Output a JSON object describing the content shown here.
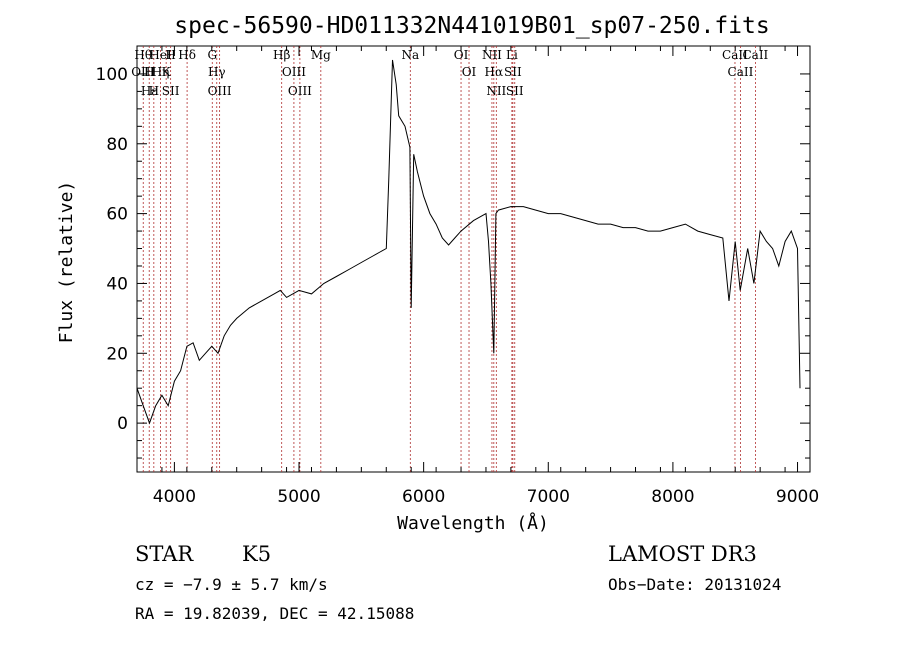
{
  "chart_data": {
    "type": "line",
    "title": "spec-56590-HD011332N441019B01_sp07-250.fits",
    "xlabel": "Wavelength (Å)",
    "ylabel": "Flux (relative)",
    "xlim": [
      3700,
      9100
    ],
    "ylim": [
      -14,
      108
    ],
    "xticks": [
      4000,
      5000,
      6000,
      7000,
      8000,
      9000
    ],
    "yticks": [
      0,
      20,
      40,
      60,
      80,
      100
    ],
    "grid": false,
    "series": [
      {
        "x": [
          3700,
          3750,
          3800,
          3850,
          3900,
          3950,
          4000,
          4050,
          4100,
          4150,
          4200,
          4250,
          4300,
          4350,
          4400,
          4450,
          4500,
          4600,
          4700,
          4800,
          4850,
          4900,
          5000,
          5100,
          5200,
          5300,
          5400,
          5500,
          5600,
          5650,
          5700,
          5720,
          5750,
          5780,
          5800,
          5850,
          5890,
          5900,
          5920,
          5950,
          6000,
          6050,
          6100,
          6150,
          6200,
          6250,
          6300,
          6400,
          6500,
          6520,
          6540,
          6563,
          6580,
          6600,
          6700,
          6800,
          6900,
          7000,
          7100,
          7200,
          7300,
          7400,
          7500,
          7600,
          7700,
          7800,
          7900,
          8000,
          8100,
          8200,
          8300,
          8400,
          8450,
          8500,
          8540,
          8600,
          8650,
          8700,
          8750,
          8800,
          8850,
          8900,
          8950,
          9000,
          9020
        ],
        "y": [
          10,
          5,
          0,
          5,
          8,
          5,
          12,
          15,
          22,
          23,
          18,
          20,
          22,
          20,
          25,
          28,
          30,
          33,
          35,
          37,
          38,
          36,
          38,
          37,
          40,
          42,
          44,
          46,
          48,
          49,
          50,
          70,
          104,
          97,
          88,
          85,
          79,
          33,
          77,
          72,
          65,
          60,
          57,
          53,
          51,
          53,
          55,
          58,
          60,
          52,
          40,
          20,
          60,
          61,
          62,
          62,
          61,
          60,
          60,
          59,
          58,
          57,
          57,
          56,
          56,
          55,
          55,
          56,
          57,
          55,
          54,
          53,
          35,
          52,
          38,
          50,
          40,
          55,
          52,
          50,
          45,
          52,
          55,
          50,
          10
        ]
      }
    ],
    "line_markers": [
      {
        "wavelength": 3750,
        "labels": [
          "Hθ",
          "OIII"
        ]
      },
      {
        "wavelength": 3798,
        "labels": [
          "H",
          "Hε"
        ]
      },
      {
        "wavelength": 3835,
        "labels": [
          "H"
        ]
      },
      {
        "wavelength": 3889,
        "labels": [
          "HeI",
          "Hη"
        ]
      },
      {
        "wavelength": 3934,
        "labels": [
          "K"
        ]
      },
      {
        "wavelength": 3970,
        "labels": [
          "SII",
          "H"
        ]
      },
      {
        "wavelength": 4102,
        "labels": [
          "Hδ"
        ]
      },
      {
        "wavelength": 4304,
        "labels": [
          "G"
        ]
      },
      {
        "wavelength": 4340,
        "labels": [
          "Hγ"
        ]
      },
      {
        "wavelength": 4363,
        "labels": [
          "OIII"
        ]
      },
      {
        "wavelength": 4861,
        "labels": [
          "Hβ"
        ]
      },
      {
        "wavelength": 4959,
        "labels": [
          "OIII"
        ]
      },
      {
        "wavelength": 5007,
        "labels": [
          "OIII"
        ]
      },
      {
        "wavelength": 5175,
        "labels": [
          "Mg"
        ]
      },
      {
        "wavelength": 5893,
        "labels": [
          "Na"
        ]
      },
      {
        "wavelength": 6300,
        "labels": [
          "OI"
        ]
      },
      {
        "wavelength": 6364,
        "labels": [
          "OI"
        ]
      },
      {
        "wavelength": 6548,
        "labels": [
          "NII"
        ]
      },
      {
        "wavelength": 6563,
        "labels": [
          "Hα"
        ]
      },
      {
        "wavelength": 6583,
        "labels": [
          "NII"
        ]
      },
      {
        "wavelength": 6708,
        "labels": [
          "Li"
        ]
      },
      {
        "wavelength": 6716,
        "labels": [
          "SII"
        ]
      },
      {
        "wavelength": 6731,
        "labels": [
          "SII"
        ]
      },
      {
        "wavelength": 8498,
        "labels": [
          "CaII"
        ]
      },
      {
        "wavelength": 8542,
        "labels": [
          "CaII"
        ]
      },
      {
        "wavelength": 8662,
        "labels": [
          "CaII"
        ]
      }
    ]
  },
  "info": {
    "class_label": "STAR",
    "subclass_label": "K5",
    "survey": "LAMOST DR3",
    "cz": "cz = −7.9 ± 5.7 km/s",
    "obs_date": "Obs−Date: 20131024",
    "radec": "RA =  19.82039, DEC =  42.15088"
  },
  "colors": {
    "spectrum": "#000000",
    "line_marker": "#b03030"
  }
}
